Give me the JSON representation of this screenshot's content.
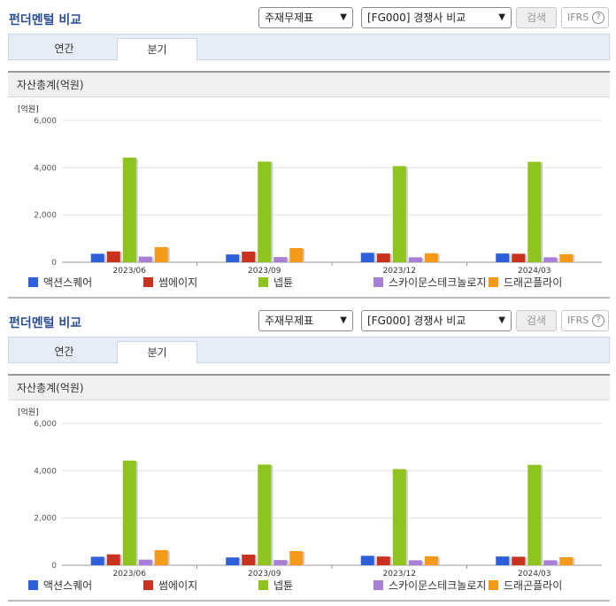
{
  "header": {
    "title": "펀더멘털 비교",
    "select1_value": "주재무제표",
    "select2_value": "[FG000] 경쟁사 비교",
    "search_label": "검색",
    "ifrs_label": "IFRS",
    "help_label": "?"
  },
  "tabs": [
    {
      "label": "연간"
    },
    {
      "label": "분기"
    }
  ],
  "section_title": "자산총계(억원)",
  "colors": {
    "series1": "#2c5fd9",
    "series2": "#c8321e",
    "series3": "#8fc41f",
    "series4": "#a97fd6",
    "series5": "#f59a18",
    "accent_title": "#2b4d93"
  },
  "chart_data": {
    "type": "bar",
    "unit_label": "[억원]",
    "categories": [
      "2023/06",
      "2023/09",
      "2023/12",
      "2024/03"
    ],
    "ylim": [
      0,
      6000
    ],
    "yticks": [
      "6,000",
      "4,000",
      "2,000",
      "0"
    ],
    "ytick_values": [
      6000,
      4000,
      2000,
      0
    ],
    "series": [
      {
        "name": "액션스퀘어",
        "values": [
          360,
          330,
          400,
          370
        ]
      },
      {
        "name": "썸에이지",
        "values": [
          460,
          450,
          370,
          360
        ]
      },
      {
        "name": "넵튠",
        "values": [
          4430,
          4260,
          4070,
          4250
        ]
      },
      {
        "name": "스카이문스테크놀로지",
        "values": [
          240,
          220,
          210,
          210
        ]
      },
      {
        "name": "드래곤플라이",
        "values": [
          640,
          600,
          380,
          340
        ]
      }
    ]
  }
}
